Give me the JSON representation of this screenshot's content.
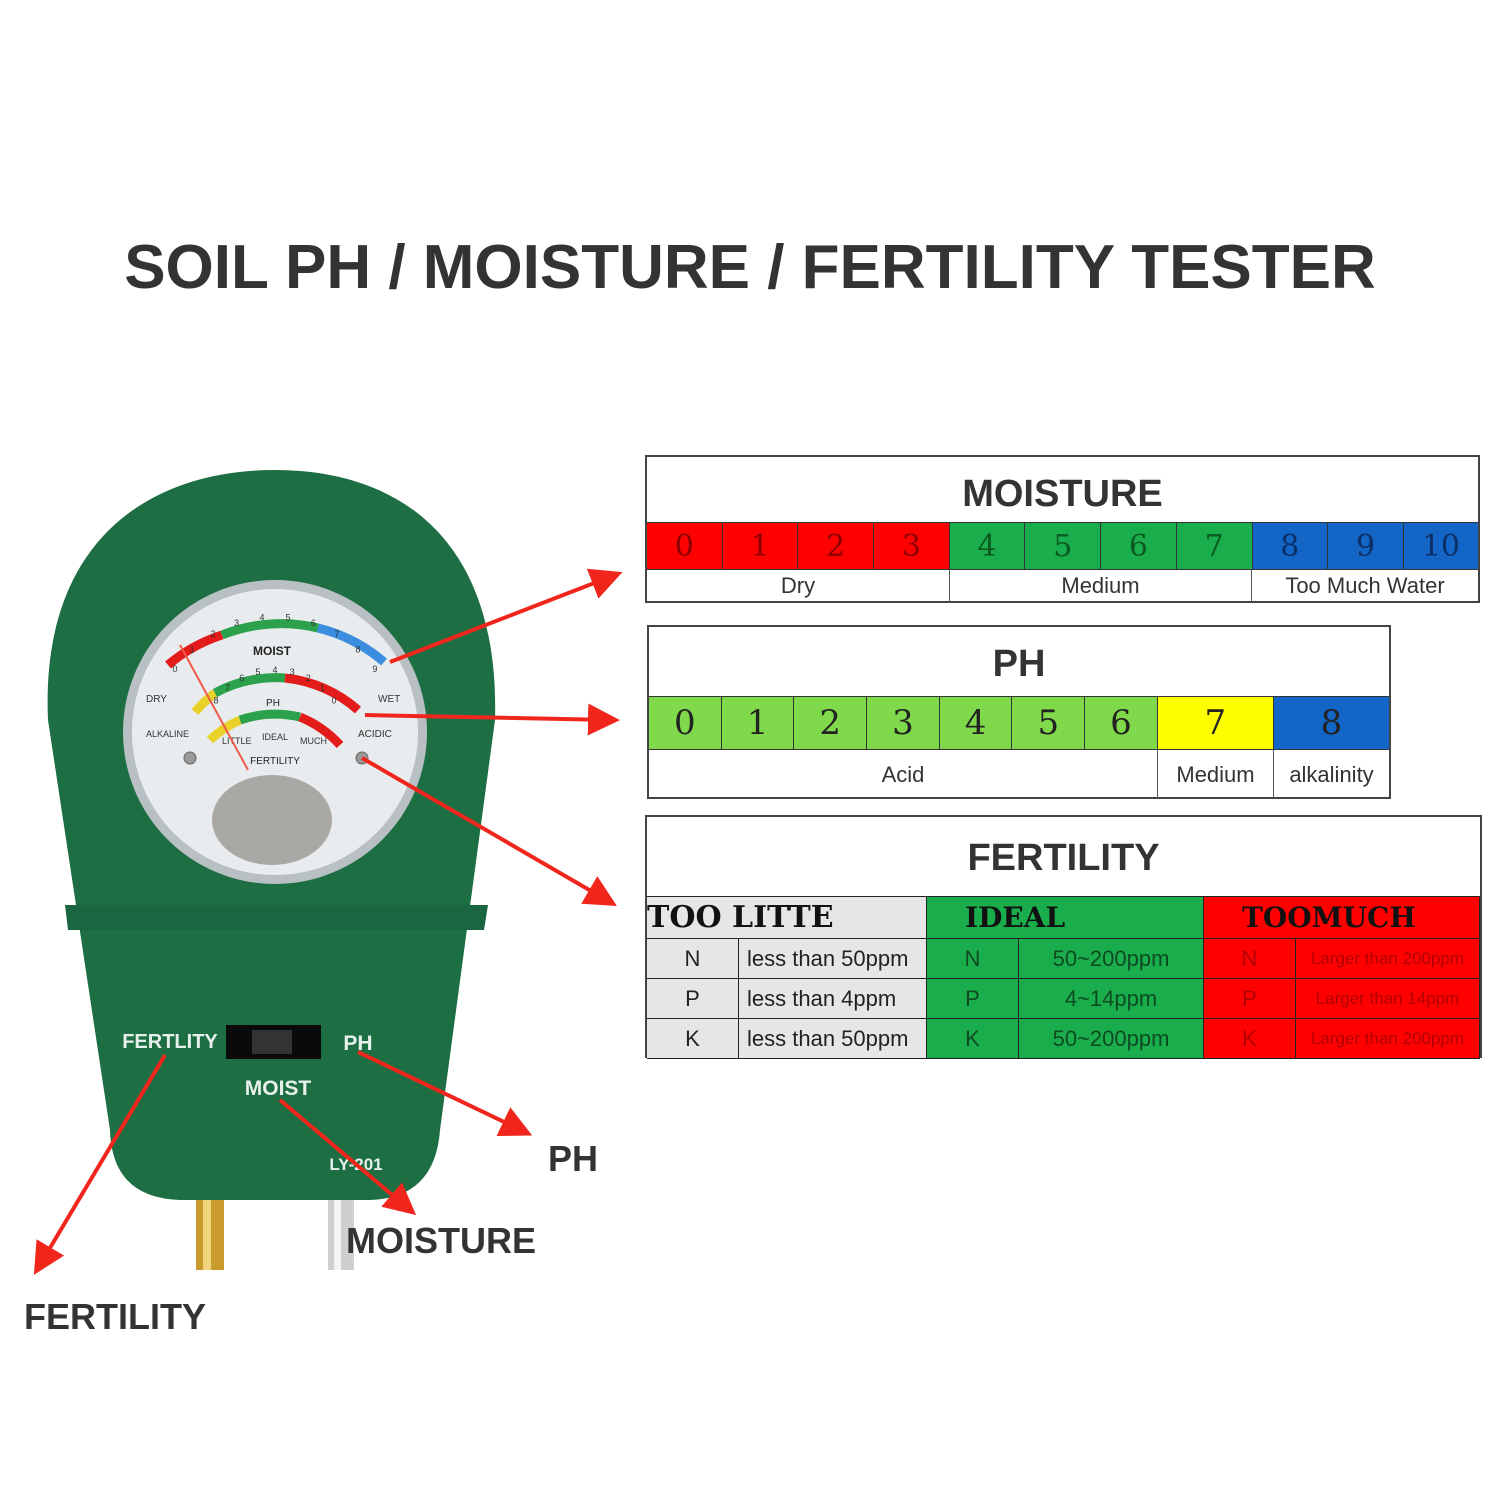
{
  "title": "SOIL PH / MOISTURE / FERTILITY TESTER",
  "colors": {
    "red": "#ff0000",
    "green": "#1aad4b",
    "blue": "#1466c6",
    "light_green": "#7fd94a",
    "yellow": "#ffff00",
    "grey": "#e6e6e6",
    "device_green": "#1d6e43",
    "arrow": "#f0261c"
  },
  "moisture": {
    "title": "MOISTURE",
    "scale": [
      {
        "value": "0",
        "zone": "red"
      },
      {
        "value": "1",
        "zone": "red"
      },
      {
        "value": "2",
        "zone": "red"
      },
      {
        "value": "3",
        "zone": "red"
      },
      {
        "value": "4",
        "zone": "green"
      },
      {
        "value": "5",
        "zone": "green"
      },
      {
        "value": "6",
        "zone": "green"
      },
      {
        "value": "7",
        "zone": "green"
      },
      {
        "value": "8",
        "zone": "blue"
      },
      {
        "value": "9",
        "zone": "blue"
      },
      {
        "value": "10",
        "zone": "blue"
      }
    ],
    "labels": [
      "Dry",
      "Medium",
      "Too Much Water"
    ]
  },
  "ph": {
    "title": "PH",
    "scale": [
      {
        "value": "0",
        "zone": "light_green"
      },
      {
        "value": "1",
        "zone": "light_green"
      },
      {
        "value": "2",
        "zone": "light_green"
      },
      {
        "value": "3",
        "zone": "light_green"
      },
      {
        "value": "4",
        "zone": "light_green"
      },
      {
        "value": "5",
        "zone": "light_green"
      },
      {
        "value": "6",
        "zone": "light_green"
      },
      {
        "value": "7",
        "zone": "yellow"
      },
      {
        "value": "8",
        "zone": "blue"
      }
    ],
    "labels": [
      "Acid",
      "Medium",
      "alkalinity"
    ]
  },
  "fertility": {
    "title": "FERTILITY",
    "groups": [
      {
        "header": "TOO LITTE",
        "rows": [
          [
            "N",
            "less than 50ppm"
          ],
          [
            "P",
            "less than 4ppm"
          ],
          [
            "K",
            "less than 50ppm"
          ]
        ]
      },
      {
        "header": "IDEAL",
        "rows": [
          [
            "N",
            "50~200ppm"
          ],
          [
            "P",
            "4~14ppm"
          ],
          [
            "K",
            "50~200ppm"
          ]
        ]
      },
      {
        "header": "TOOMUCH",
        "rows": [
          [
            "N",
            "Larger than 200ppm"
          ],
          [
            "P",
            "Larger than 14ppm"
          ],
          [
            "K",
            "Larger than 200ppm"
          ]
        ]
      }
    ]
  },
  "device": {
    "dial": {
      "moist_label": "MOIST",
      "ph_label": "PH",
      "fertility_label": "FERTILITY",
      "dry": "DRY",
      "wet": "WET",
      "alkaline": "ALKALINE",
      "acidic": "ACIDIC",
      "little": "LITTLE",
      "ideal": "IDEAL",
      "much": "MUCH",
      "moist_ticks": [
        "0",
        "1",
        "2",
        "3",
        "4",
        "5",
        "6",
        "7",
        "8",
        "9"
      ],
      "ph_ticks": [
        "8",
        "7",
        "6",
        "5",
        "4",
        "3",
        "2",
        "1",
        "0"
      ]
    },
    "switch_labels": {
      "fertility": "FERTLITY",
      "ph": "PH",
      "moist": "MOIST"
    },
    "model": "LY-201"
  },
  "callouts": {
    "ph": "PH",
    "moisture": "MOISTURE",
    "fertility": "FERTILITY"
  }
}
